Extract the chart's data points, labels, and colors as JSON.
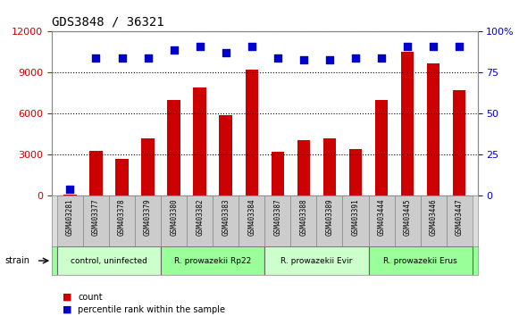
{
  "title": "GDS3848 / 36321",
  "samples": [
    "GSM403281",
    "GSM403377",
    "GSM403378",
    "GSM403379",
    "GSM403380",
    "GSM403382",
    "GSM403383",
    "GSM403384",
    "GSM403387",
    "GSM403388",
    "GSM403389",
    "GSM403391",
    "GSM403444",
    "GSM403445",
    "GSM403446",
    "GSM403447"
  ],
  "counts": [
    120,
    3300,
    2700,
    4200,
    7000,
    7900,
    5900,
    9200,
    3200,
    4100,
    4200,
    3400,
    7000,
    10500,
    9700,
    7700
  ],
  "percentiles": [
    4,
    84,
    84,
    84,
    89,
    91,
    87,
    91,
    84,
    83,
    83,
    84,
    84,
    91,
    91,
    91
  ],
  "groups": [
    {
      "label": "control, uninfected",
      "start": 0,
      "end": 4,
      "color": "#ccffcc"
    },
    {
      "label": "R. prowazekii Rp22",
      "start": 4,
      "end": 8,
      "color": "#99ff99"
    },
    {
      "label": "R. prowazekii Evir",
      "start": 8,
      "end": 12,
      "color": "#ccffcc"
    },
    {
      "label": "R. prowazekii Erus",
      "start": 12,
      "end": 16,
      "color": "#99ff99"
    }
  ],
  "ylim_left": [
    0,
    12000
  ],
  "ylim_right": [
    0,
    100
  ],
  "yticks_left": [
    0,
    3000,
    6000,
    9000,
    12000
  ],
  "yticks_right": [
    0,
    25,
    50,
    75,
    100
  ],
  "bar_color": "#cc0000",
  "scatter_color": "#0000cc",
  "bar_width": 0.5,
  "bg_color": "#ffffff",
  "plot_bg_color": "#ffffff",
  "strain_label": "strain",
  "legend_count_label": "count",
  "legend_pct_label": "percentile rank within the sample"
}
